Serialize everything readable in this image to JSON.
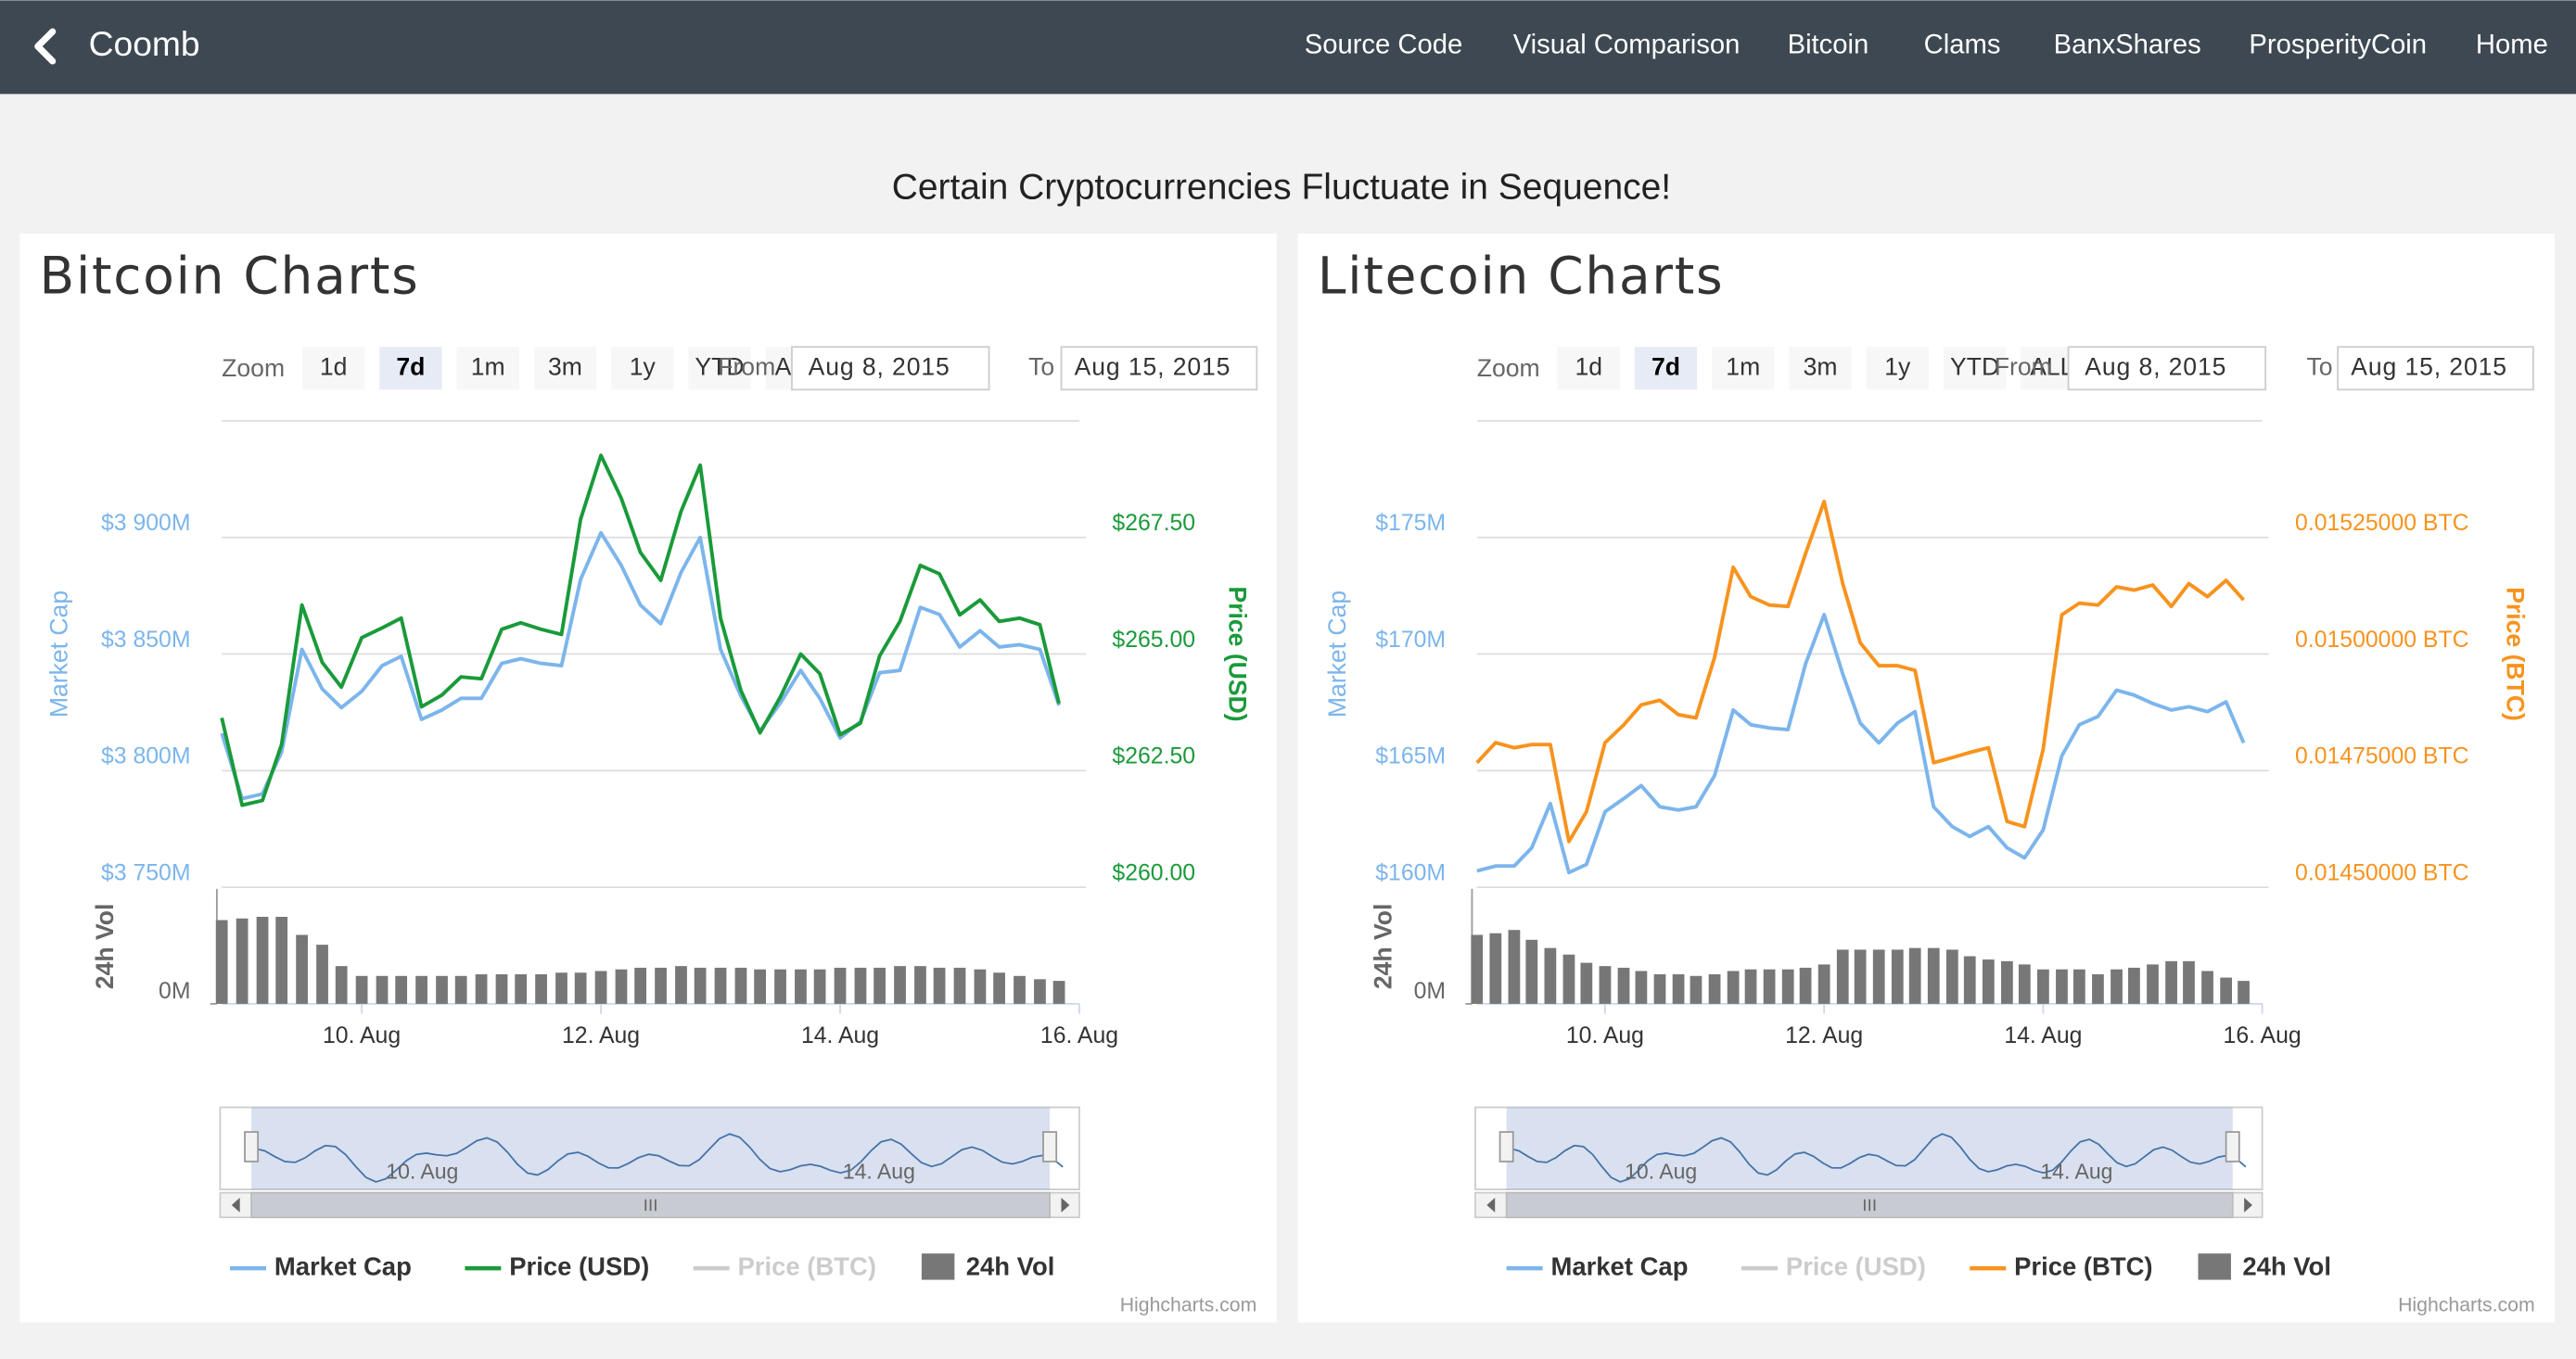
{
  "nav": {
    "brand": "Coomb",
    "links": [
      "Source Code",
      "Visual Comparison",
      "Bitcoin",
      "Clams",
      "BanxShares",
      "ProsperityCoin",
      "Home"
    ]
  },
  "heading": "Certain Cryptocurrencies Fluctuate in Sequence!",
  "chart_data": [
    {
      "type": "line",
      "title": "Bitcoin Charts",
      "range_selector": {
        "zoom_label": "Zoom",
        "buttons": [
          "1d",
          "7d",
          "1m",
          "3m",
          "1y",
          "YTD",
          "ALL"
        ],
        "selected": 1,
        "from_label": "From",
        "from": "Aug 8, 2015",
        "to_label": "To",
        "to": "Aug 15, 2015"
      },
      "x": [
        8.83,
        9,
        9.17,
        9.33,
        9.5,
        9.67,
        9.83,
        10,
        10.17,
        10.33,
        10.5,
        10.67,
        10.83,
        11,
        11.17,
        11.33,
        11.5,
        11.67,
        11.83,
        12,
        12.17,
        12.33,
        12.5,
        12.67,
        12.83,
        13,
        13.17,
        13.33,
        13.5,
        13.67,
        13.83,
        14,
        14.17,
        14.33,
        14.5,
        14.67,
        14.83,
        15,
        15.17,
        15.33,
        15.5,
        15.67,
        15.83
      ],
      "xlim": [
        8.83,
        16
      ],
      "xticks": [
        {
          "value": 10,
          "label": "10. Aug"
        },
        {
          "value": 12,
          "label": "12. Aug"
        },
        {
          "value": 14,
          "label": "14. Aug"
        },
        {
          "value": 16,
          "label": "16. Aug"
        }
      ],
      "y_label": "Market Cap",
      "ylim": [
        3750,
        3950
      ],
      "yticks": [
        {
          "value": 3750,
          "label": "$3 750M"
        },
        {
          "value": 3800,
          "label": "$3 800M"
        },
        {
          "value": 3850,
          "label": "$3 850M"
        },
        {
          "value": 3900,
          "label": "$3 900M"
        }
      ],
      "y2_label": "Price (USD)",
      "y2_color": "#1a9a3a",
      "y2lim": [
        260,
        270
      ],
      "y2ticks": [
        {
          "value": 260,
          "label": "$260.00"
        },
        {
          "value": 262.5,
          "label": "$262.50"
        },
        {
          "value": 265,
          "label": "$265.00"
        },
        {
          "value": 267.5,
          "label": "$267.50"
        }
      ],
      "vol_label": "24h Vol",
      "vol_ylim": [
        0,
        66
      ],
      "vol_yticks": [
        {
          "value": 0,
          "label": "0M"
        }
      ],
      "series": [
        {
          "name": "Market Cap",
          "color": "#7cb5ec",
          "axis": "y",
          "values": [
            3816,
            3788,
            3790,
            3808,
            3852,
            3835,
            3827,
            3834,
            3845,
            3849,
            3822,
            3826,
            3831,
            3831,
            3846,
            3848,
            3846,
            3845,
            3882,
            3902,
            3888,
            3871,
            3863,
            3885,
            3900,
            3852,
            3832,
            3817,
            3829,
            3843,
            3831,
            3814,
            3821,
            3842,
            3843,
            3870,
            3867,
            3853,
            3860,
            3853,
            3854,
            3852,
            3828
          ]
        },
        {
          "name": "Price (USD)",
          "color": "#1a9a3a",
          "axis": "y2",
          "values": [
            263.63,
            261.76,
            261.86,
            263.06,
            266.05,
            264.82,
            264.29,
            265.35,
            265.56,
            265.77,
            263.87,
            264.12,
            264.51,
            264.47,
            265.53,
            265.67,
            265.53,
            265.42,
            267.89,
            269.26,
            268.34,
            267.18,
            266.58,
            268.06,
            269.05,
            265.77,
            264.22,
            263.31,
            264.08,
            265,
            264.58,
            263.27,
            263.52,
            264.96,
            265.7,
            266.9,
            266.72,
            265.84,
            266.16,
            265.7,
            265.77,
            265.63,
            263.94
          ]
        },
        {
          "name": "Price (BTC)",
          "color": "#cccccc",
          "visible": false
        },
        {
          "name": "24h Vol",
          "color": "#777777",
          "axis": "vol",
          "values": [
            51,
            52,
            53,
            53,
            42,
            36,
            23,
            17,
            17,
            17,
            17,
            17,
            17,
            18,
            18,
            18,
            18,
            19,
            19,
            20,
            21,
            22,
            22,
            23,
            22,
            22,
            22,
            21,
            21,
            21,
            21,
            22,
            22,
            22,
            23,
            23,
            22,
            22,
            21,
            19,
            17,
            15,
            14
          ]
        }
      ],
      "navigator_ticks": [
        "10. Aug",
        "14. Aug"
      ],
      "credits": "Highcharts.com"
    },
    {
      "type": "line",
      "title": "Litecoin Charts",
      "range_selector": {
        "zoom_label": "Zoom",
        "buttons": [
          "1d",
          "7d",
          "1m",
          "3m",
          "1y",
          "YTD",
          "ALL"
        ],
        "selected": 1,
        "from_label": "From",
        "from": "Aug 8, 2015",
        "to_label": "To",
        "to": "Aug 15, 2015"
      },
      "x": [
        8.83,
        9,
        9.17,
        9.33,
        9.5,
        9.67,
        9.83,
        10,
        10.17,
        10.33,
        10.5,
        10.67,
        10.83,
        11,
        11.17,
        11.33,
        11.5,
        11.67,
        11.83,
        12,
        12.17,
        12.33,
        12.5,
        12.67,
        12.83,
        13,
        13.17,
        13.33,
        13.5,
        13.67,
        13.83,
        14,
        14.17,
        14.33,
        14.5,
        14.67,
        14.83,
        15,
        15.17,
        15.33,
        15.5,
        15.67,
        15.83
      ],
      "xlim": [
        8.83,
        16
      ],
      "xticks": [
        {
          "value": 10,
          "label": "10. Aug"
        },
        {
          "value": 12,
          "label": "12. Aug"
        },
        {
          "value": 14,
          "label": "14. Aug"
        },
        {
          "value": 16,
          "label": "16. Aug"
        }
      ],
      "y_label": "Market Cap",
      "ylim": [
        160,
        180
      ],
      "yticks": [
        {
          "value": 160,
          "label": "$160M"
        },
        {
          "value": 165,
          "label": "$165M"
        },
        {
          "value": 170,
          "label": "$170M"
        },
        {
          "value": 175,
          "label": "$175M"
        }
      ],
      "y2_label": "Price (BTC)",
      "y2_color": "#f7931e",
      "y2lim": [
        0.0145,
        0.0155
      ],
      "y2ticks": [
        {
          "value": 0.0145,
          "label": "0.01450000 BTC"
        },
        {
          "value": 0.01475,
          "label": "0.01475000 BTC"
        },
        {
          "value": 0.015,
          "label": "0.01500000 BTC"
        },
        {
          "value": 0.01525,
          "label": "0.01525000 BTC"
        }
      ],
      "vol_label": "24h Vol",
      "vol_ylim": [
        0,
        66
      ],
      "vol_yticks": [
        {
          "value": 0,
          "label": "0M"
        }
      ],
      "series": [
        {
          "name": "Market Cap",
          "color": "#7cb5ec",
          "axis": "y",
          "values": [
            160.7,
            160.91,
            160.91,
            161.69,
            163.59,
            160.63,
            160.98,
            163.24,
            163.8,
            164.36,
            163.45,
            163.31,
            163.45,
            164.79,
            167.6,
            166.97,
            166.83,
            166.76,
            169.57,
            171.69,
            169.15,
            167.04,
            166.19,
            167.04,
            167.53,
            163.45,
            162.6,
            162.18,
            162.6,
            161.69,
            161.26,
            162.46,
            165.63,
            166.97,
            167.32,
            168.45,
            168.24,
            167.88,
            167.6,
            167.74,
            167.53,
            167.95,
            166.19
          ]
        },
        {
          "name": "Price (USD)",
          "color": "#cccccc",
          "visible": false
        },
        {
          "name": "Price (BTC)",
          "color": "#f7931e",
          "axis": "y2",
          "values": [
            0.014767,
            0.01481,
            0.014799,
            0.014806,
            0.014806,
            0.014598,
            0.014662,
            0.01481,
            0.014848,
            0.014891,
            0.014901,
            0.01487,
            0.014863,
            0.014993,
            0.015186,
            0.015123,
            0.015105,
            0.015102,
            0.015215,
            0.015327,
            0.015151,
            0.015024,
            0.014975,
            0.014975,
            0.014965,
            0.014767,
            0.014778,
            0.014789,
            0.014799,
            0.014641,
            0.01463,
            0.014796,
            0.015084,
            0.015109,
            0.015105,
            0.015144,
            0.015137,
            0.015148,
            0.015102,
            0.015151,
            0.015123,
            0.015158,
            0.015116
          ]
        },
        {
          "name": "24h Vol",
          "color": "#777777",
          "axis": "vol",
          "values": [
            42,
            43,
            45,
            39,
            34,
            30,
            25,
            23,
            22,
            20,
            18,
            18,
            17,
            18,
            20,
            21,
            21,
            21,
            22,
            24,
            33,
            33,
            33,
            33,
            34,
            34,
            33,
            29,
            27,
            26,
            24,
            21,
            21,
            21,
            18,
            21,
            22,
            24,
            26,
            26,
            20,
            16,
            14
          ]
        }
      ],
      "navigator_ticks": [
        "10. Aug",
        "14. Aug"
      ],
      "credits": "Highcharts.com"
    }
  ]
}
